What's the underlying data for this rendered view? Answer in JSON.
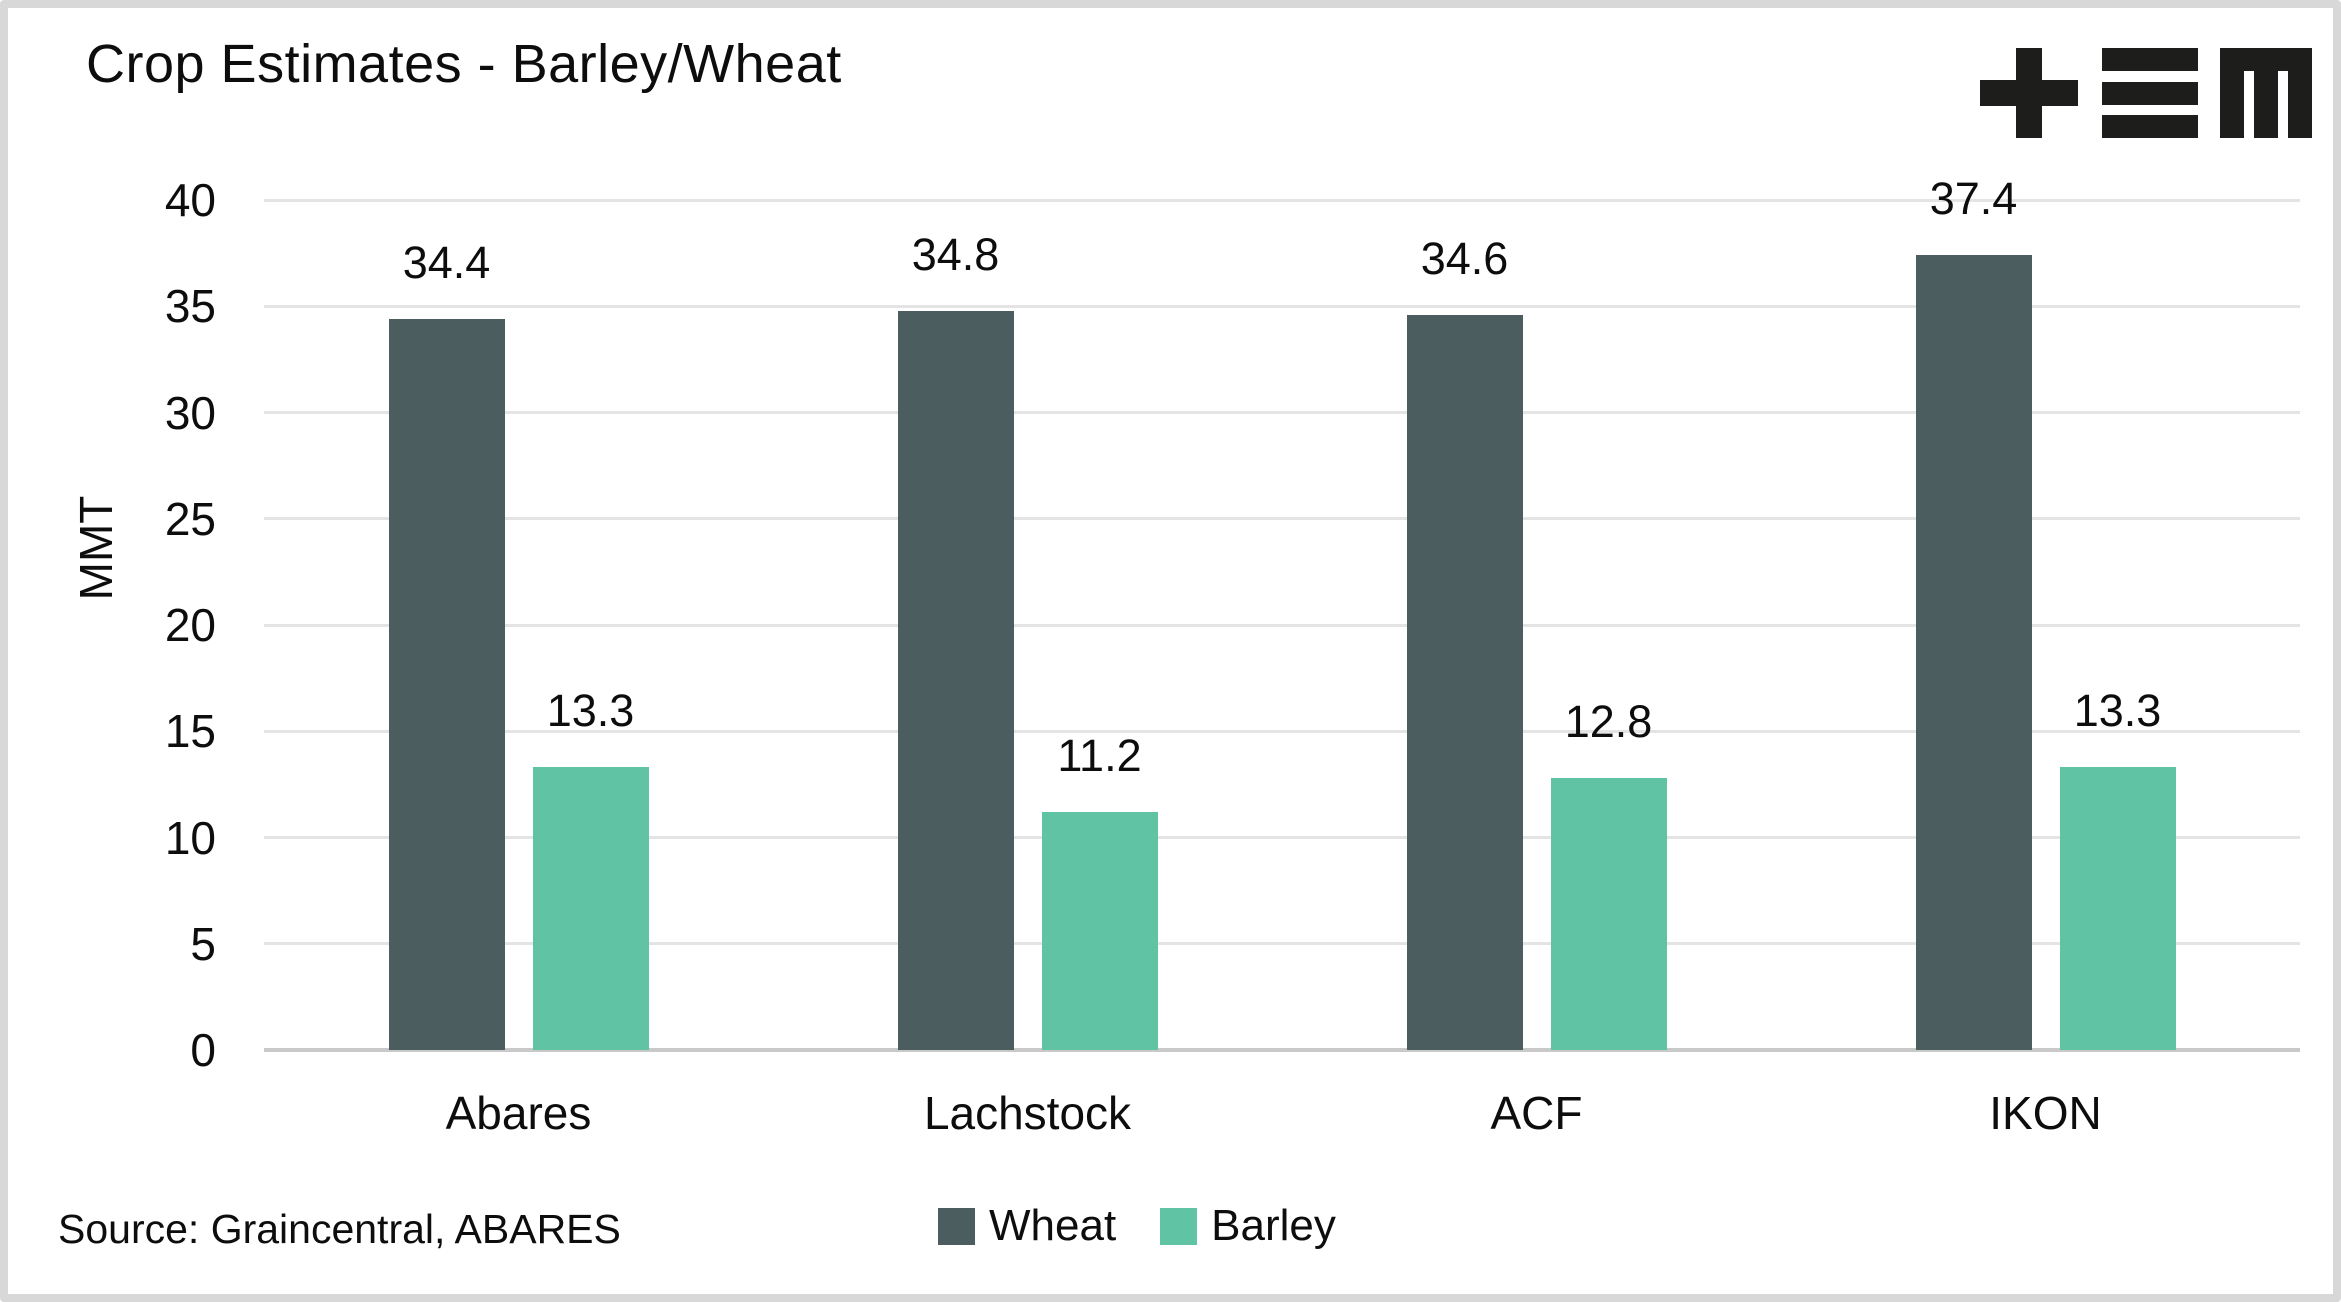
{
  "header": {
    "title": "Crop Estimates - Barley/Wheat",
    "logo": {
      "glyphs": [
        "plus-icon",
        "triple-bar-icon",
        "m-icon"
      ],
      "color": "#1d1d1b"
    }
  },
  "chart_data": {
    "type": "bar",
    "title": "Crop Estimates - Barley/Wheat",
    "categories": [
      "Abares",
      "Lachstock",
      "ACF",
      "IKON"
    ],
    "series": [
      {
        "name": "Wheat",
        "color": "#4b5d5f",
        "values": [
          34.4,
          34.8,
          34.6,
          37.4
        ]
      },
      {
        "name": "Barley",
        "color": "#5fc3a4",
        "values": [
          13.3,
          11.2,
          12.8,
          13.3
        ]
      }
    ],
    "value_label_precision": 1,
    "xlabel": "",
    "ylabel": "MMT",
    "ylim": [
      0,
      40
    ],
    "yticks": [
      0,
      5,
      10,
      15,
      20,
      25,
      30,
      35,
      40
    ],
    "grid": "horizontal",
    "legend_position": "bottom-center",
    "source": "Source: Graincentral, ABARES",
    "colors": {
      "grid": "#e4e4e4",
      "baseline": "#c9c9c9",
      "text": "#0d0d0d",
      "background": "#ffffff",
      "frame_border": "#d8d8d8"
    }
  }
}
